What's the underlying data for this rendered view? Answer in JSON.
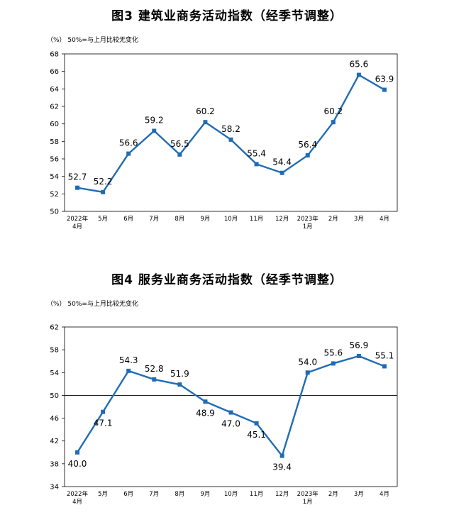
{
  "chart_data": [
    {
      "type": "line",
      "title": "图3  建筑业商务活动指数（经季节调整）",
      "note": "（%）  50%=与上月比较无变化",
      "categories": [
        "2022年|4月",
        "5月",
        "6月",
        "7月",
        "8月",
        "9月",
        "10月",
        "11月",
        "12月",
        "2023年|1月",
        "2月",
        "3月",
        "4月"
      ],
      "series": [
        {
          "values": [
            52.7,
            52.2,
            56.6,
            59.2,
            56.5,
            60.2,
            58.2,
            55.4,
            54.4,
            56.4,
            60.2,
            65.6,
            63.9
          ]
        }
      ],
      "value_labels": [
        "52.7",
        "52.2",
        "56.6",
        "59.2",
        "56.5",
        "60.2",
        "58.2",
        "55.4",
        "54.4",
        "56.4",
        "60.2",
        "65.6",
        "63.9"
      ],
      "ylim": [
        50,
        68
      ],
      "yticks": [
        50,
        52,
        54,
        56,
        58,
        60,
        62,
        64,
        66,
        68
      ],
      "reference_line": null,
      "markers": "square",
      "label_position": [
        "above",
        "above",
        "above",
        "above",
        "above",
        "above",
        "above",
        "above",
        "above",
        "above",
        "above",
        "above",
        "above"
      ],
      "color": "#1f6cb5",
      "grid": false
    },
    {
      "type": "line",
      "title": "图4  服务业商务活动指数（经季节调整）",
      "note": "（%）  50%=与上月比较无变化",
      "categories": [
        "2022年|4月",
        "5月",
        "6月",
        "7月",
        "8月",
        "9月",
        "10月",
        "11月",
        "12月",
        "2023年|1月",
        "2月",
        "3月",
        "4月"
      ],
      "series": [
        {
          "values": [
            40.0,
            47.1,
            54.3,
            52.8,
            51.9,
            48.9,
            47.0,
            45.1,
            39.4,
            54.0,
            55.6,
            56.9,
            55.1
          ]
        }
      ],
      "value_labels": [
        "40.0",
        "47.1",
        "54.3",
        "52.8",
        "51.9",
        "48.9",
        "47.0",
        "45.1",
        "39.4",
        "54.0",
        "55.6",
        "56.9",
        "55.1"
      ],
      "ylim": [
        34,
        62
      ],
      "yticks": [
        34,
        38,
        42,
        46,
        50,
        54,
        58,
        62
      ],
      "reference_line": 50,
      "markers": "square",
      "label_position": [
        "below",
        "below",
        "above",
        "above",
        "above",
        "below",
        "below",
        "below",
        "below",
        "above",
        "above",
        "above",
        "above"
      ],
      "color": "#1f6cb5",
      "grid": false
    }
  ]
}
